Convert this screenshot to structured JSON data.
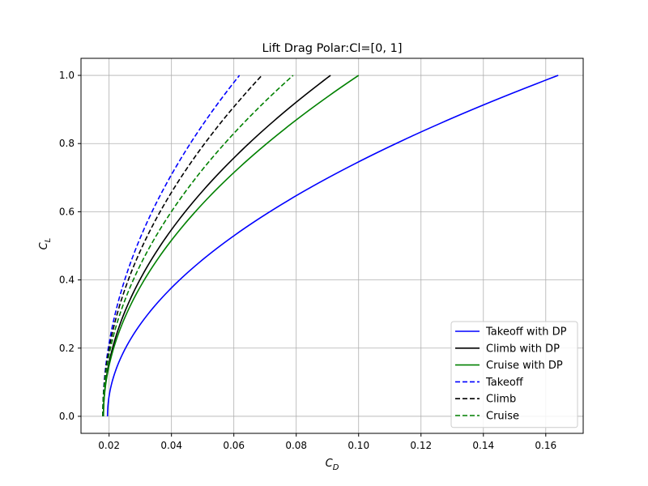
{
  "chart_data": {
    "type": "line",
    "title": "Lift Drag Polar:Cl=[0, 1]",
    "xlabel": {
      "base": "C",
      "sub": "D"
    },
    "ylabel": {
      "base": "C",
      "sub": "L"
    },
    "xlim": [
      0.011,
      0.172
    ],
    "ylim": [
      -0.05,
      1.05
    ],
    "xticks": [
      0.02,
      0.04,
      0.06,
      0.08,
      0.1,
      0.12,
      0.14,
      0.16
    ],
    "xtick_labels": [
      "0.02",
      "0.04",
      "0.06",
      "0.08",
      "0.10",
      "0.12",
      "0.14",
      "0.16"
    ],
    "yticks": [
      0.0,
      0.2,
      0.4,
      0.6,
      0.8,
      1.0
    ],
    "ytick_labels": [
      "0.0",
      "0.2",
      "0.4",
      "0.6",
      "0.8",
      "1.0"
    ],
    "grid": true,
    "legend_position": "bottom-right",
    "series": [
      {
        "name": "Takeoff with DP",
        "color": "#0000ff",
        "dash": "solid",
        "cd0": 0.0195,
        "k": 0.1445
      },
      {
        "name": "Climb with DP",
        "color": "#000000",
        "dash": "solid",
        "cd0": 0.0182,
        "k": 0.0728
      },
      {
        "name": "Cruise with DP",
        "color": "#008000",
        "dash": "solid",
        "cd0": 0.0182,
        "k": 0.0818
      },
      {
        "name": "Takeoff",
        "color": "#0000ff",
        "dash": "dashed",
        "cd0": 0.018,
        "k": 0.0438
      },
      {
        "name": "Climb",
        "color": "#000000",
        "dash": "dashed",
        "cd0": 0.018,
        "k": 0.051
      },
      {
        "name": "Cruise",
        "color": "#008000",
        "dash": "dashed",
        "cd0": 0.018,
        "k": 0.061
      }
    ],
    "cl_range": [
      0,
      1
    ]
  }
}
